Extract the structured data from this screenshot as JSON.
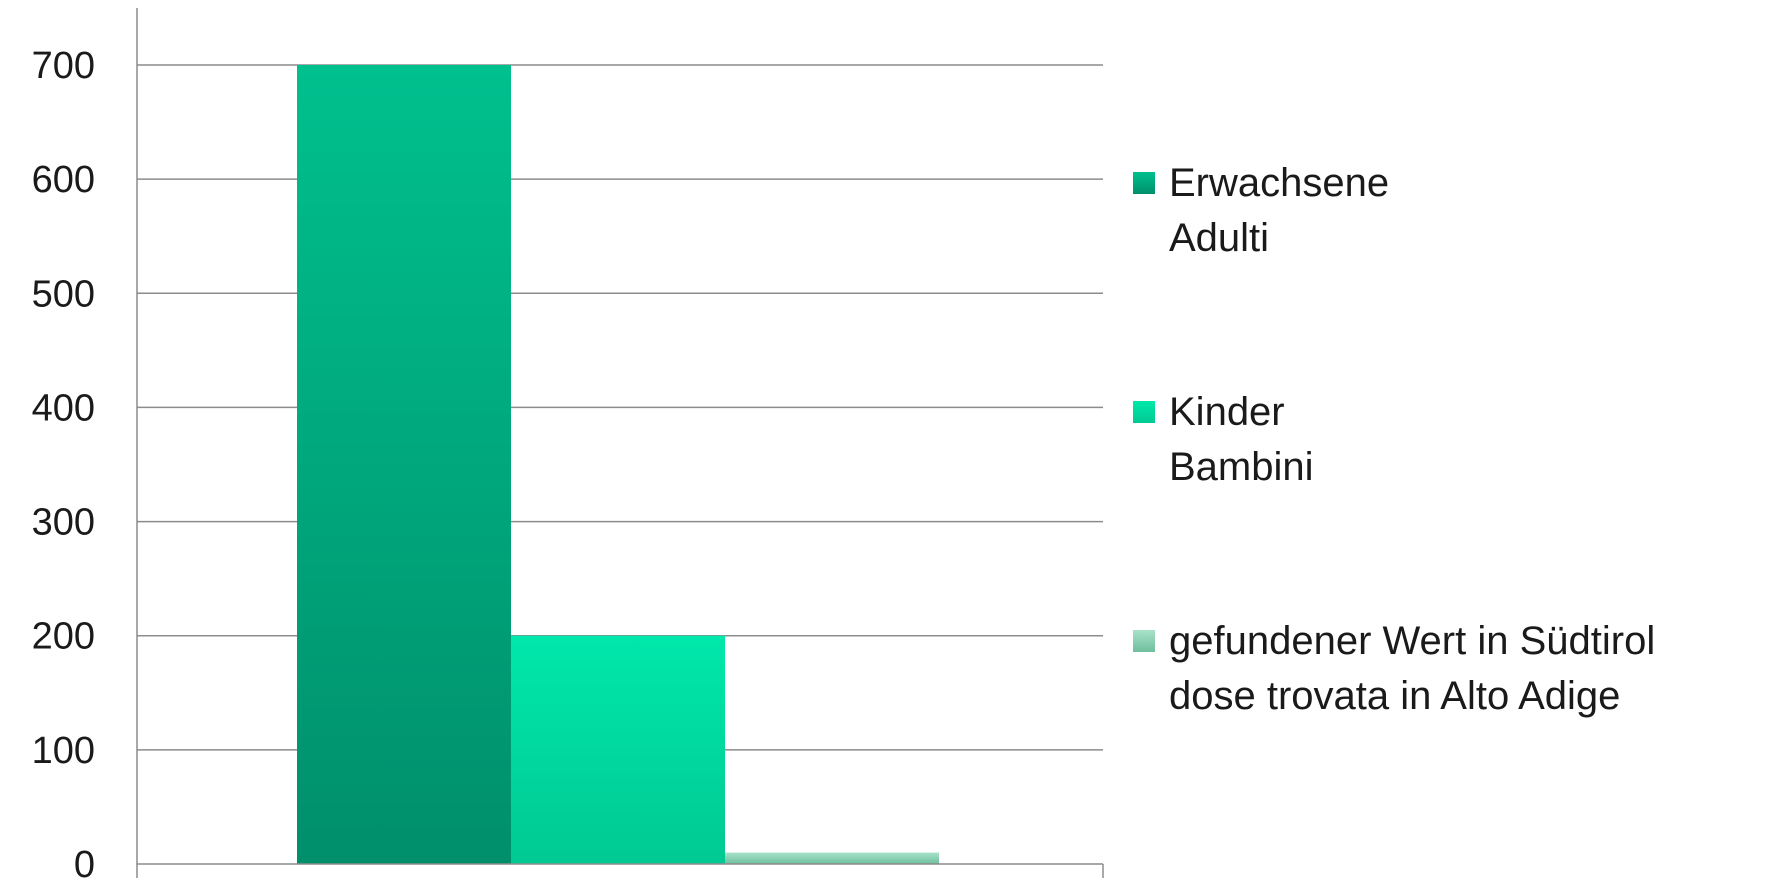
{
  "chart_data": {
    "type": "bar",
    "title": "",
    "xlabel": "",
    "ylabel": "",
    "ylim": [
      0,
      700
    ],
    "yticks": [
      0,
      100,
      200,
      300,
      400,
      500,
      600,
      700
    ],
    "grid": true,
    "legend_position": "right",
    "categories": [
      ""
    ],
    "series": [
      {
        "name": "Erwachsene Adulti",
        "label_lines": [
          "Erwachsene",
          "Adulti"
        ],
        "values": [
          700
        ],
        "color": "#009d75",
        "color_top": "#00c08e",
        "color_bottom": "#008f6b"
      },
      {
        "name": "Kinder Bambini",
        "label_lines": [
          "Kinder",
          "Bambini"
        ],
        "values": [
          200
        ],
        "color": "#00e0a4",
        "color_top": "#00e8ab",
        "color_bottom": "#00c993"
      },
      {
        "name": "gefundener Wert in Südtirol dose trovata in Alto Adige",
        "label_lines": [
          "gefundener Wert in Südtirol",
          "dose trovata in Alto Adige"
        ],
        "values": [
          10
        ],
        "color": "#8fd6b8",
        "color_top": "#a8e2c9",
        "color_bottom": "#6fbf9d"
      }
    ]
  }
}
